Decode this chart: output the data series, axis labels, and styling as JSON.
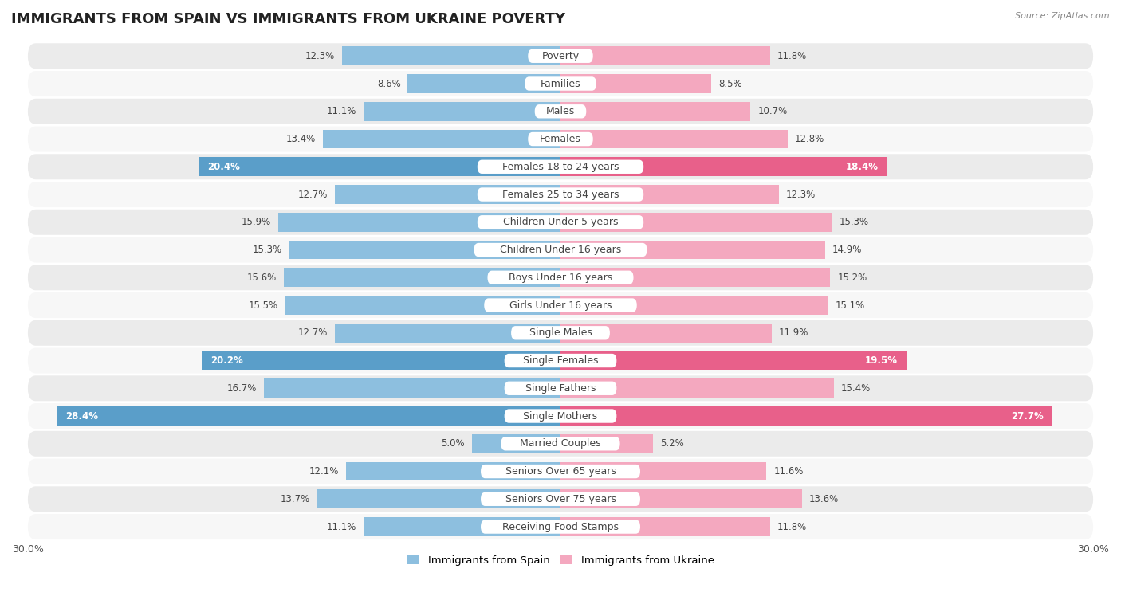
{
  "title": "IMMIGRANTS FROM SPAIN VS IMMIGRANTS FROM UKRAINE POVERTY",
  "source": "Source: ZipAtlas.com",
  "categories": [
    "Poverty",
    "Families",
    "Males",
    "Females",
    "Females 18 to 24 years",
    "Females 25 to 34 years",
    "Children Under 5 years",
    "Children Under 16 years",
    "Boys Under 16 years",
    "Girls Under 16 years",
    "Single Males",
    "Single Females",
    "Single Fathers",
    "Single Mothers",
    "Married Couples",
    "Seniors Over 65 years",
    "Seniors Over 75 years",
    "Receiving Food Stamps"
  ],
  "spain_values": [
    12.3,
    8.6,
    11.1,
    13.4,
    20.4,
    12.7,
    15.9,
    15.3,
    15.6,
    15.5,
    12.7,
    20.2,
    16.7,
    28.4,
    5.0,
    12.1,
    13.7,
    11.1
  ],
  "ukraine_values": [
    11.8,
    8.5,
    10.7,
    12.8,
    18.4,
    12.3,
    15.3,
    14.9,
    15.2,
    15.1,
    11.9,
    19.5,
    15.4,
    27.7,
    5.2,
    11.6,
    13.6,
    11.8
  ],
  "spain_color": "#8dbfdf",
  "ukraine_color": "#f4a8bf",
  "spain_highlight_color": "#5a9ec9",
  "ukraine_highlight_color": "#e8608a",
  "highlight_rows": [
    4,
    11,
    13
  ],
  "max_val": 30.0,
  "bar_height": 0.68,
  "bg_color": "#ffffff",
  "row_even_color": "#ebebeb",
  "row_odd_color": "#f7f7f7",
  "title_fontsize": 13,
  "label_fontsize": 9,
  "value_fontsize": 8.5,
  "legend_labels": [
    "Immigrants from Spain",
    "Immigrants from Ukraine"
  ]
}
